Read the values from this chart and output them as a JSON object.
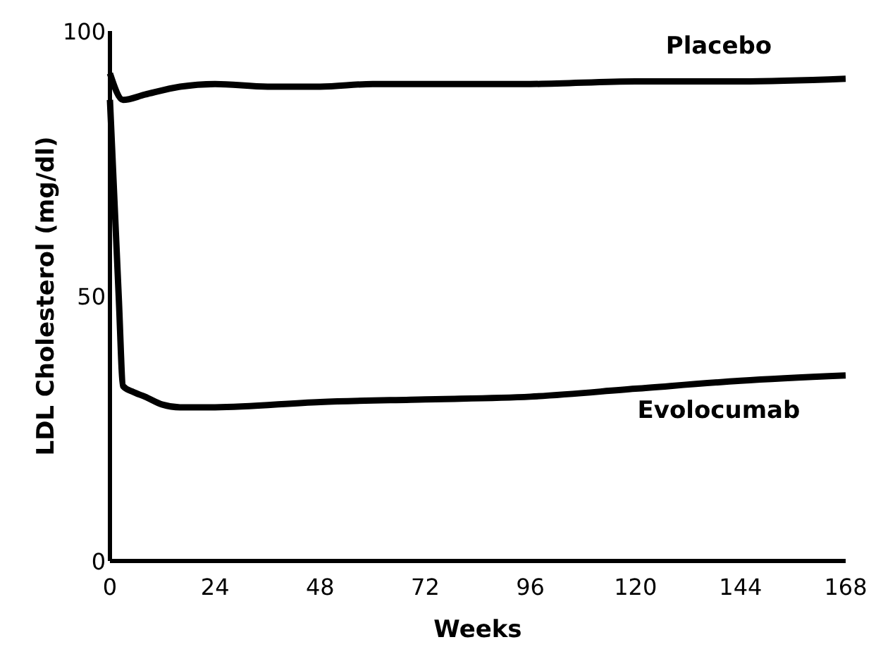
{
  "chart_data": {
    "type": "line",
    "xlabel": "Weeks",
    "ylabel": "LDL Cholesterol (mg/dl)",
    "xlim": [
      0,
      168
    ],
    "ylim": [
      0,
      100
    ],
    "xticks": [
      0,
      24,
      48,
      72,
      96,
      120,
      144,
      168
    ],
    "yticks": [
      0,
      50,
      100
    ],
    "grid": false,
    "marker": "none",
    "line_style": "solid",
    "series": [
      {
        "name": "Placebo",
        "color": "#000000",
        "x": [
          0,
          3,
          8,
          16,
          24,
          36,
          48,
          60,
          72,
          96,
          120,
          144,
          168
        ],
        "values": [
          92,
          87,
          88,
          89.5,
          90,
          89.5,
          89.5,
          90,
          90,
          90,
          90.5,
          90.5,
          91
        ]
      },
      {
        "name": "Evolocumab",
        "color": "#000000",
        "x": [
          0,
          2,
          3,
          5,
          8,
          12,
          16,
          24,
          48,
          72,
          96,
          120,
          144,
          168
        ],
        "values": [
          87,
          50,
          33,
          32,
          31,
          29.5,
          29,
          29,
          30,
          30.5,
          31,
          32.5,
          34,
          35
        ]
      }
    ]
  }
}
